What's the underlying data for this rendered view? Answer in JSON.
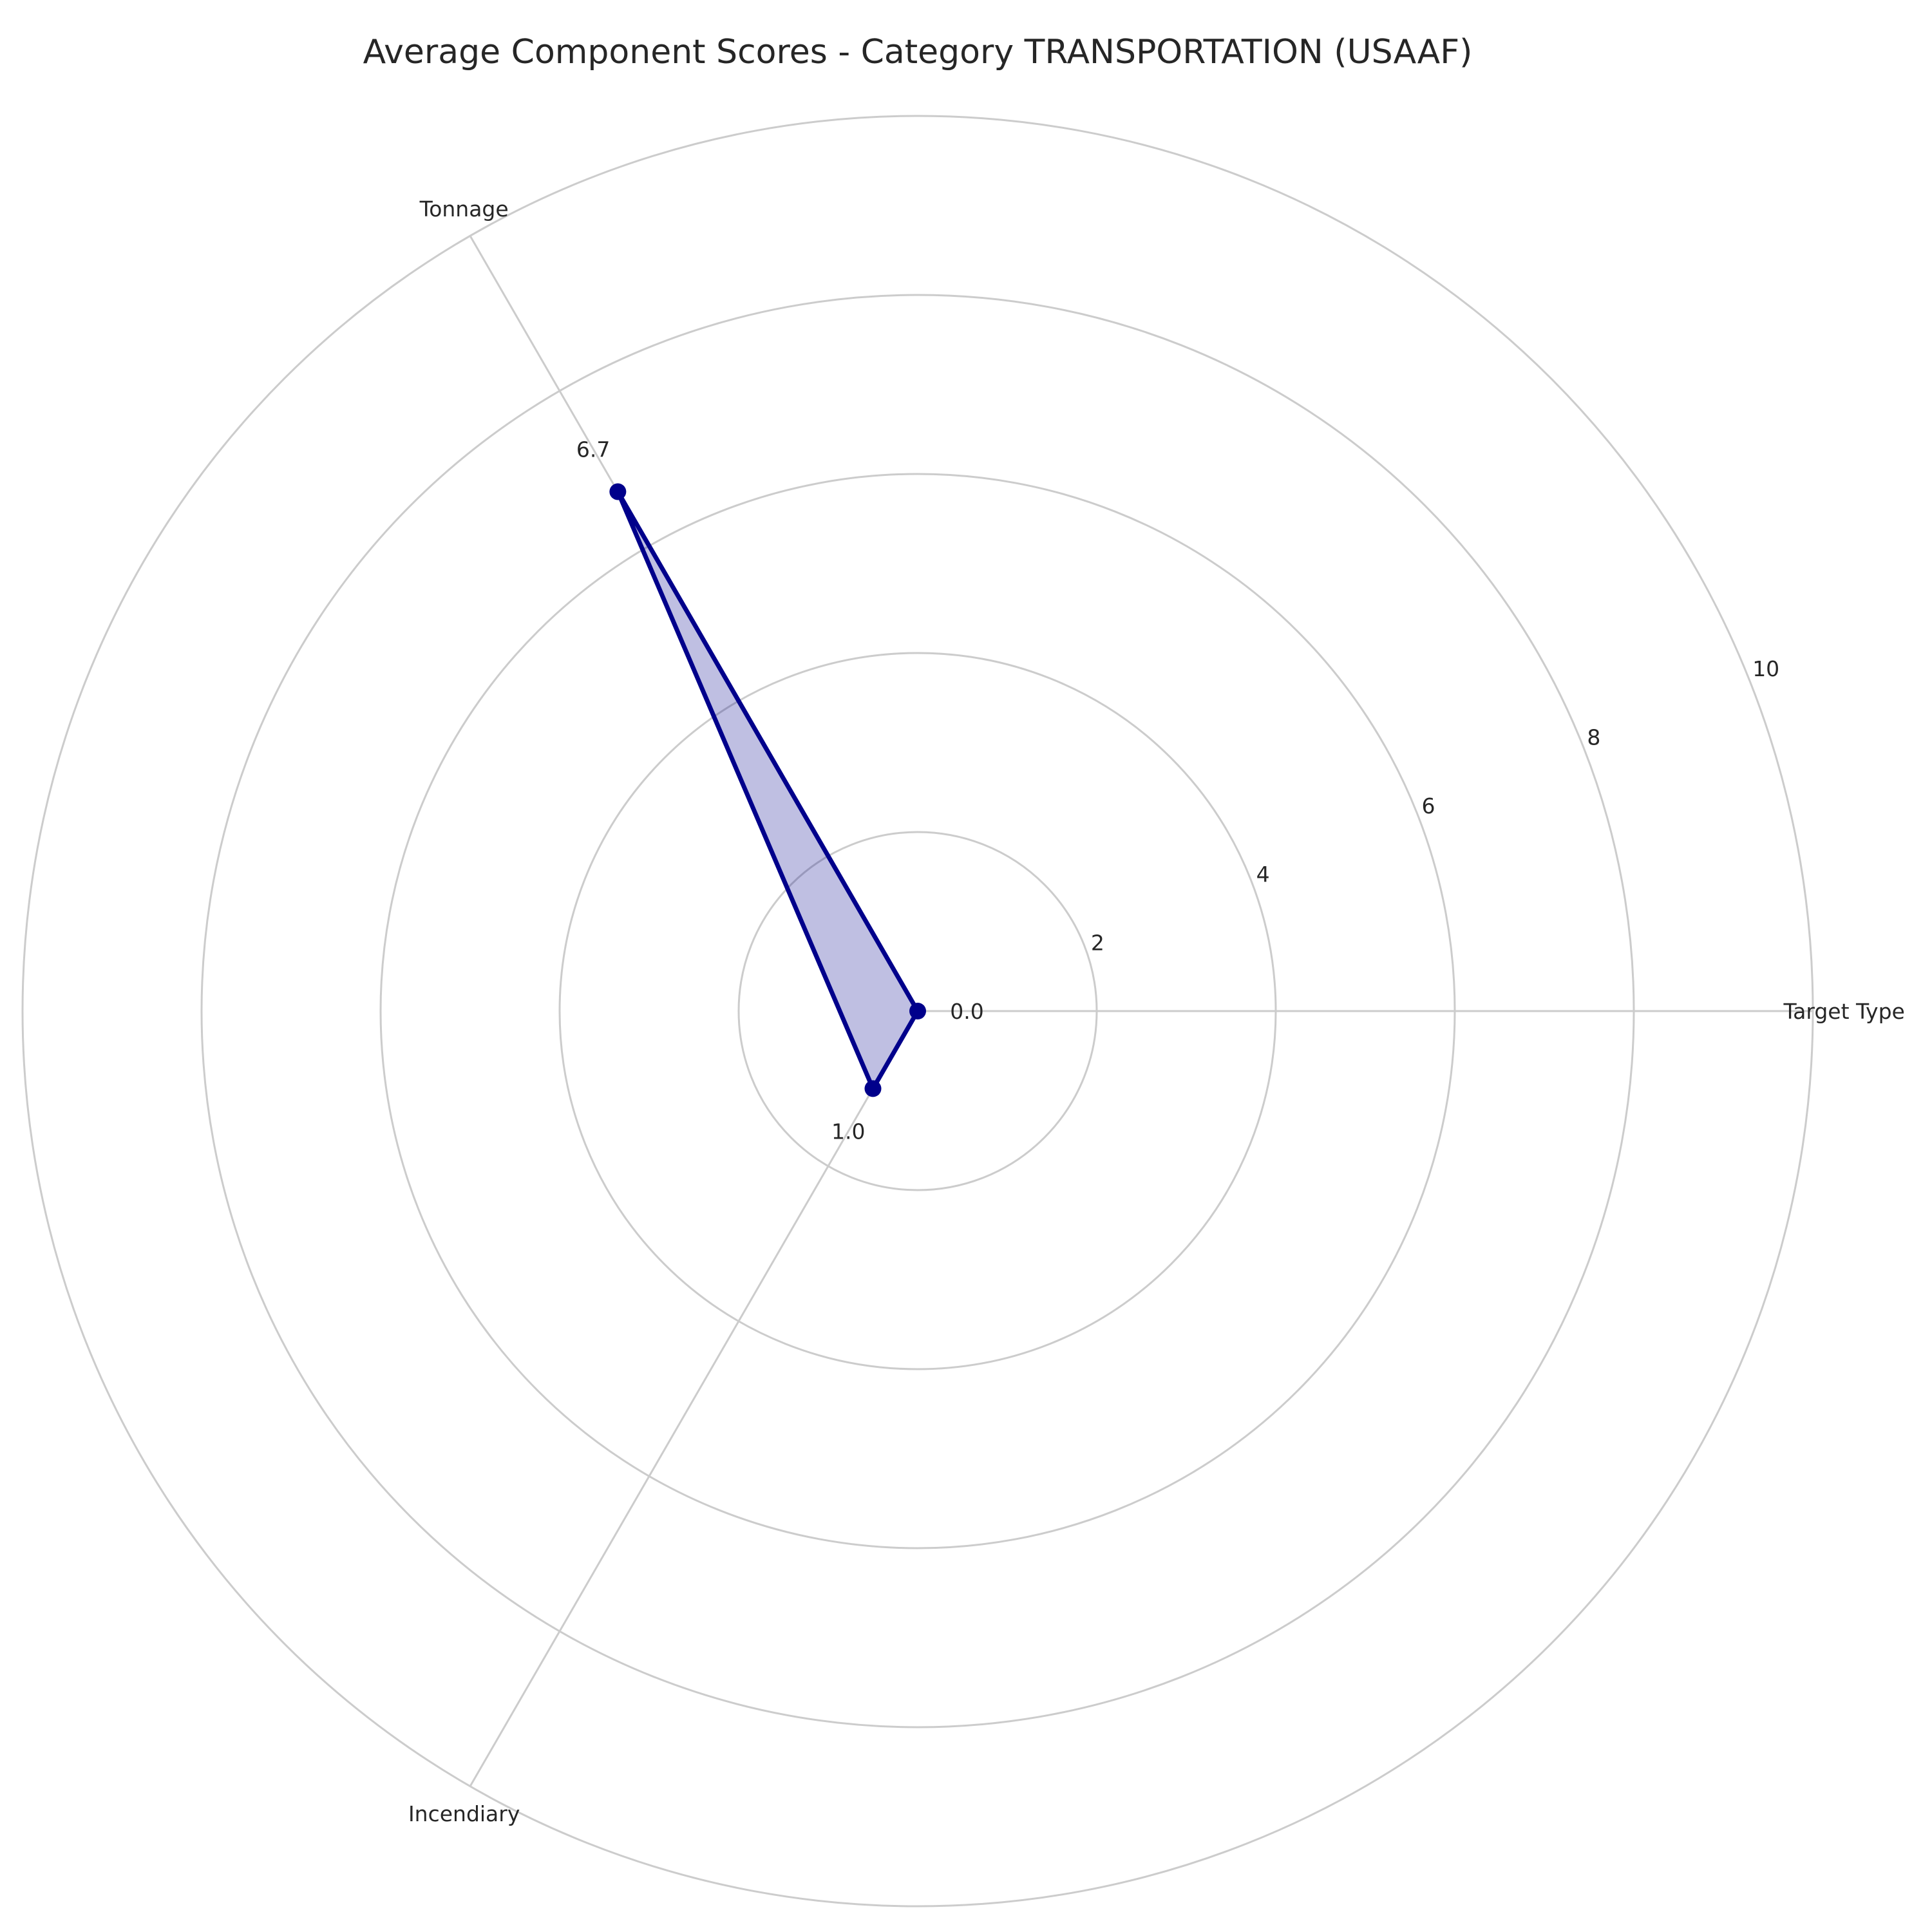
{
  "chart_data": {
    "type": "radar",
    "title": "Average Component Scores - Category TRANSPORTATION (USAAF)",
    "categories": [
      "Target Type",
      "Tonnage",
      "Incendiary"
    ],
    "values": [
      0.0,
      6.7,
      1.0
    ],
    "value_labels": [
      "0.0",
      "6.7",
      "1.0"
    ],
    "rlim": [
      0,
      10
    ],
    "r_ticks": [
      2,
      4,
      6,
      8,
      10
    ],
    "r_tick_labels": [
      "2",
      "4",
      "6",
      "8",
      "10"
    ],
    "grid": true,
    "line_color": "#00008b",
    "fill_color": "#00008b",
    "fill_opacity": 0.25,
    "grid_color": "#cccccc"
  }
}
